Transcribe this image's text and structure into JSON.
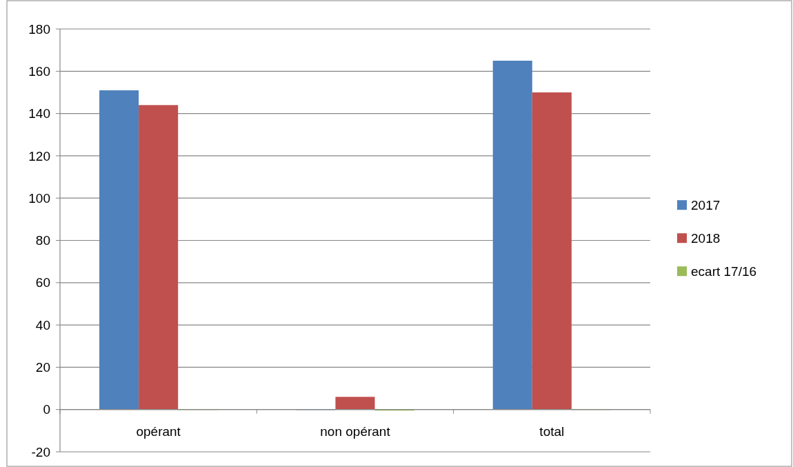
{
  "chart_data": {
    "type": "bar",
    "categories": [
      "opérant",
      "non opérant",
      "total"
    ],
    "series": [
      {
        "name": "2017",
        "color": "#4f81bd",
        "values": [
          151,
          0,
          165
        ]
      },
      {
        "name": "2018",
        "color": "#c0504d",
        "values": [
          144,
          6,
          150
        ]
      },
      {
        "name": "ecart 17/16",
        "color": "#9bbb59",
        "values": [
          0,
          -0.5,
          0
        ]
      }
    ],
    "ylim": [
      -20,
      180
    ],
    "yticks": [
      -20,
      0,
      20,
      40,
      60,
      80,
      100,
      120,
      140,
      160,
      180
    ],
    "grid": "y",
    "legend": "right"
  }
}
